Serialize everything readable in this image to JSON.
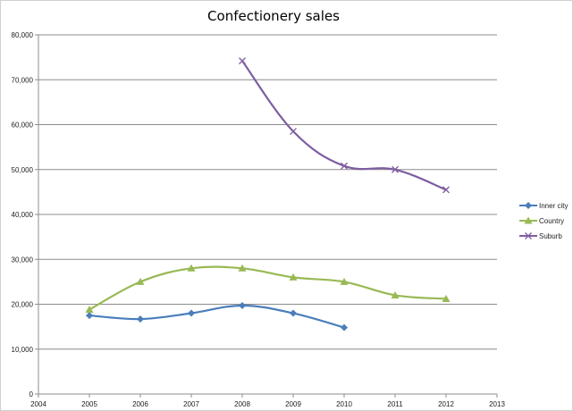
{
  "chart_data": {
    "type": "line",
    "title": "Confectionery sales",
    "xlabel": "",
    "ylabel": "",
    "xlim": [
      2004,
      2013
    ],
    "ylim": [
      0,
      80000
    ],
    "x_ticks": [
      "2004",
      "2005",
      "2006",
      "2007",
      "2008",
      "2009",
      "2010",
      "2011",
      "2012",
      "2013"
    ],
    "y_ticks": [
      "0",
      "10,000",
      "20,000",
      "30,000",
      "40,000",
      "50,000",
      "60,000",
      "70,000",
      "80,000"
    ],
    "grid": "horizontal",
    "legend_position": "right",
    "smoothed": true,
    "series": [
      {
        "name": "Inner city",
        "color": "#4a7ebb",
        "marker": "diamond",
        "x": [
          2005,
          2006,
          2007,
          2008,
          2009,
          2010
        ],
        "values": [
          17500,
          16700,
          18000,
          19700,
          18000,
          14800
        ]
      },
      {
        "name": "Country",
        "color": "#98b954",
        "marker": "triangle",
        "x": [
          2005,
          2006,
          2007,
          2008,
          2009,
          2010,
          2011,
          2012
        ],
        "values": [
          18800,
          25000,
          28000,
          28000,
          26000,
          25000,
          22000,
          21200
        ]
      },
      {
        "name": "Suburb",
        "color": "#7e5ea0",
        "marker": "x",
        "x": [
          2008,
          2009,
          2010,
          2011,
          2012
        ],
        "values": [
          74200,
          58500,
          50800,
          50000,
          45500
        ]
      }
    ]
  }
}
